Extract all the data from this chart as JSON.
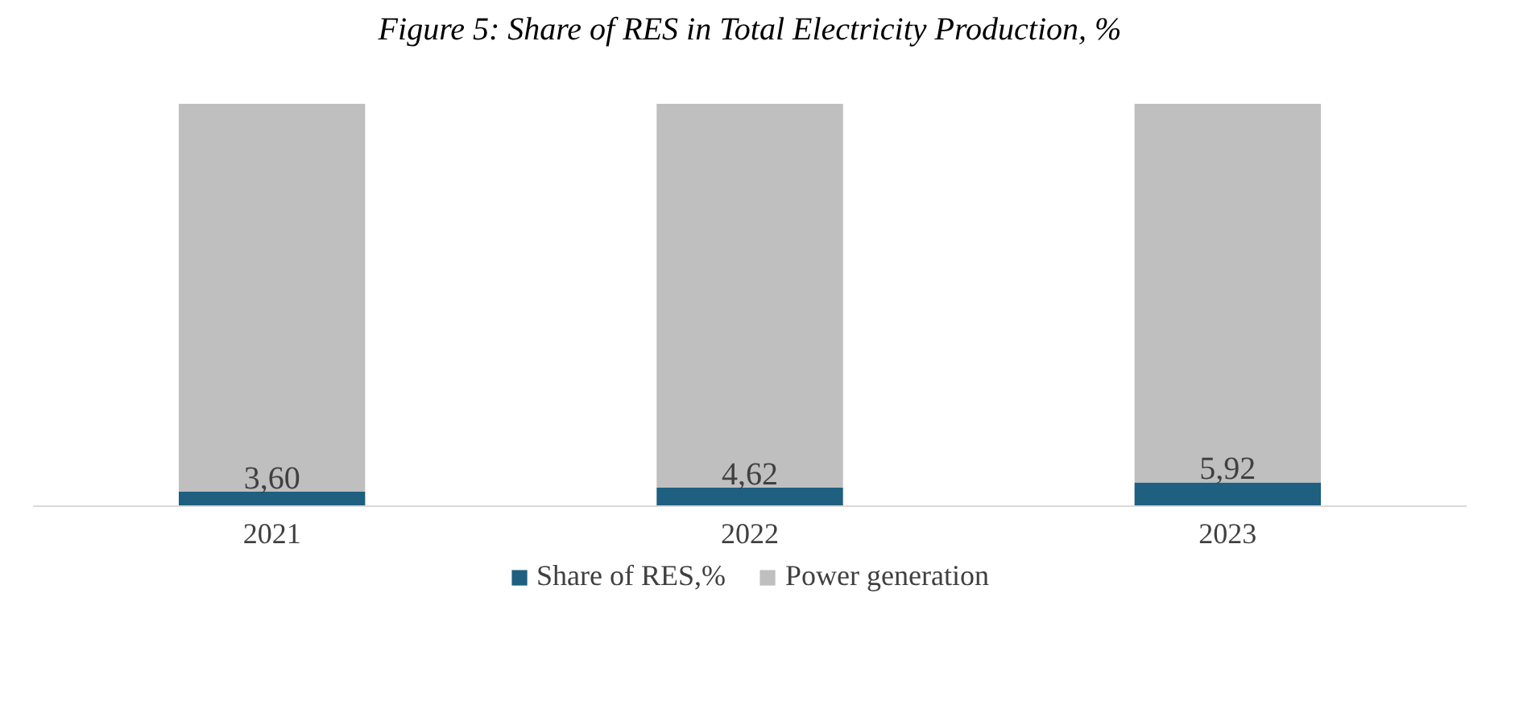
{
  "chart_data": {
    "type": "bar",
    "title": "Figure 5: Share of RES in Total Electricity Production, %",
    "categories": [
      "2021",
      "2022",
      "2023"
    ],
    "stacked": true,
    "legend": "bottom",
    "series": [
      {
        "name": "Share of RES,%",
        "color": "#1f5f7f",
        "values": [
          3.6,
          4.62,
          5.92
        ],
        "value_labels": [
          "3,60",
          "4,62",
          "5,92"
        ]
      },
      {
        "name": "Power generation",
        "color": "#bfbfbf",
        "values": [
          96.4,
          95.38,
          94.08
        ]
      }
    ]
  }
}
